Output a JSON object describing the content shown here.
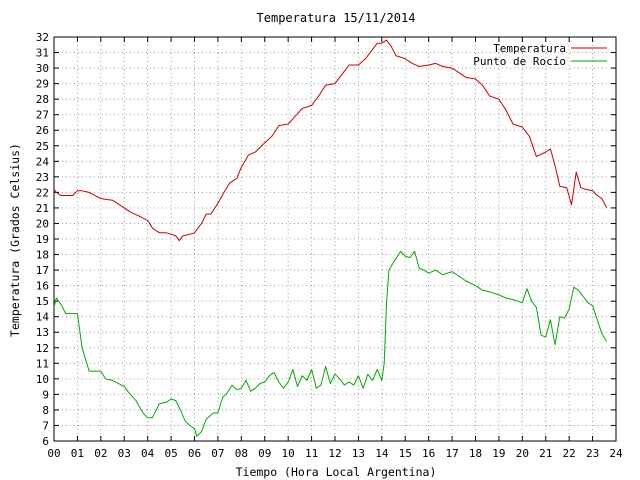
{
  "chart_data": {
    "type": "line",
    "title": "Temperatura 15/11/2014",
    "xlabel": "Tiempo (Hora Local Argentina)",
    "ylabel": "Temperatura (Grados Celsius)",
    "xlim": [
      0,
      24
    ],
    "ylim": [
      6,
      32
    ],
    "x_ticks": [
      "00",
      "01",
      "02",
      "03",
      "04",
      "05",
      "06",
      "07",
      "08",
      "09",
      "10",
      "11",
      "12",
      "13",
      "14",
      "15",
      "16",
      "17",
      "18",
      "19",
      "20",
      "21",
      "22",
      "23",
      "24"
    ],
    "y_ticks": [
      "6",
      "7",
      "8",
      "9",
      "10",
      "11",
      "12",
      "13",
      "14",
      "15",
      "16",
      "17",
      "18",
      "19",
      "20",
      "21",
      "22",
      "23",
      "24",
      "25",
      "26",
      "27",
      "28",
      "29",
      "30",
      "31",
      "32"
    ],
    "grid": true,
    "legend_position": "top-right",
    "series": [
      {
        "name": "Temperatura",
        "color": "#cc0000",
        "x": [
          0.0,
          0.1,
          0.3,
          0.5,
          0.8,
          1.0,
          1.2,
          1.5,
          2.0,
          2.5,
          3.0,
          3.3,
          3.6,
          4.0,
          4.2,
          4.5,
          4.8,
          5.0,
          5.2,
          5.35,
          5.5,
          5.8,
          6.0,
          6.3,
          6.5,
          6.7,
          7.0,
          7.3,
          7.5,
          7.8,
          8.0,
          8.3,
          8.6,
          9.0,
          9.3,
          9.6,
          10.0,
          10.3,
          10.6,
          11.0,
          11.3,
          11.6,
          12.0,
          12.3,
          12.6,
          13.0,
          13.3,
          13.6,
          13.8,
          14.0,
          14.2,
          14.4,
          14.6,
          15.0,
          15.3,
          15.6,
          16.0,
          16.3,
          16.6,
          17.0,
          17.3,
          17.6,
          18.0,
          18.3,
          18.6,
          19.0,
          19.3,
          19.6,
          20.0,
          20.3,
          20.6,
          21.0,
          21.2,
          21.4,
          21.6,
          21.9,
          22.1,
          22.3,
          22.5,
          22.7,
          23.0,
          23.2,
          23.4,
          23.6
        ],
        "values": [
          22.2,
          22.0,
          21.8,
          21.8,
          21.8,
          22.1,
          22.1,
          22.0,
          21.6,
          21.5,
          21.0,
          20.7,
          20.5,
          20.2,
          19.7,
          19.4,
          19.4,
          19.3,
          19.2,
          18.9,
          19.2,
          19.3,
          19.4,
          20.0,
          20.6,
          20.6,
          21.3,
          22.1,
          22.6,
          22.9,
          23.6,
          24.4,
          24.6,
          25.2,
          25.6,
          26.3,
          26.4,
          26.9,
          27.4,
          27.6,
          28.2,
          28.9,
          29.0,
          29.6,
          30.2,
          30.2,
          30.6,
          31.2,
          31.6,
          31.6,
          31.8,
          31.4,
          30.8,
          30.6,
          30.3,
          30.1,
          30.2,
          30.3,
          30.1,
          30.0,
          29.7,
          29.4,
          29.3,
          28.9,
          28.2,
          28.0,
          27.3,
          26.4,
          26.2,
          25.6,
          24.3,
          24.6,
          24.8,
          23.7,
          22.4,
          22.3,
          21.2,
          23.3,
          22.3,
          22.2,
          22.1,
          21.8,
          21.6,
          21.0
        ]
      },
      {
        "name": "Punto de Rocío",
        "color": "#00aa00",
        "x": [
          0.0,
          0.1,
          0.3,
          0.5,
          0.7,
          1.0,
          1.2,
          1.5,
          2.0,
          2.2,
          2.5,
          3.0,
          3.2,
          3.5,
          3.8,
          4.0,
          4.2,
          4.5,
          4.8,
          5.0,
          5.2,
          5.4,
          5.6,
          5.8,
          6.0,
          6.1,
          6.3,
          6.5,
          6.8,
          7.0,
          7.2,
          7.4,
          7.6,
          7.8,
          8.0,
          8.2,
          8.4,
          8.6,
          8.8,
          9.0,
          9.2,
          9.4,
          9.6,
          9.8,
          10.0,
          10.2,
          10.4,
          10.6,
          10.8,
          11.0,
          11.2,
          11.4,
          11.6,
          11.8,
          12.0,
          12.2,
          12.4,
          12.6,
          12.8,
          13.0,
          13.2,
          13.4,
          13.6,
          13.8,
          14.0,
          14.1,
          14.2,
          14.3,
          14.5,
          14.8,
          15.0,
          15.2,
          15.4,
          15.6,
          15.8,
          16.0,
          16.3,
          16.6,
          17.0,
          17.3,
          17.6,
          18.0,
          18.3,
          18.6,
          19.0,
          19.3,
          19.6,
          19.8,
          20.0,
          20.2,
          20.4,
          20.6,
          20.8,
          21.0,
          21.2,
          21.4,
          21.6,
          21.8,
          22.0,
          22.2,
          22.4,
          22.6,
          22.8,
          23.0,
          23.2,
          23.4,
          23.6
        ],
        "values": [
          14.6,
          15.2,
          14.8,
          14.2,
          14.2,
          14.2,
          12.0,
          10.5,
          10.5,
          10.0,
          9.9,
          9.5,
          9.1,
          8.6,
          7.8,
          7.5,
          7.5,
          8.4,
          8.5,
          8.7,
          8.6,
          8.0,
          7.3,
          7.0,
          6.8,
          6.3,
          6.6,
          7.4,
          7.8,
          7.8,
          8.8,
          9.1,
          9.6,
          9.3,
          9.4,
          9.9,
          9.2,
          9.4,
          9.7,
          9.8,
          10.2,
          10.4,
          9.8,
          9.4,
          9.8,
          10.6,
          9.5,
          10.2,
          9.9,
          10.6,
          9.4,
          9.6,
          10.8,
          9.7,
          10.3,
          10.0,
          9.6,
          9.8,
          9.6,
          10.2,
          9.4,
          10.3,
          9.9,
          10.6,
          9.9,
          11.0,
          14.8,
          17.0,
          17.5,
          18.2,
          17.9,
          17.8,
          18.2,
          17.1,
          17.0,
          16.8,
          17.0,
          16.7,
          16.9,
          16.6,
          16.3,
          16.0,
          15.7,
          15.6,
          15.4,
          15.2,
          15.1,
          15.0,
          14.9,
          15.8,
          15.0,
          14.6,
          12.8,
          12.7,
          13.8,
          12.2,
          14.0,
          13.9,
          14.5,
          15.9,
          15.7,
          15.3,
          14.9,
          14.7,
          13.8,
          12.9,
          12.4
        ]
      }
    ]
  }
}
